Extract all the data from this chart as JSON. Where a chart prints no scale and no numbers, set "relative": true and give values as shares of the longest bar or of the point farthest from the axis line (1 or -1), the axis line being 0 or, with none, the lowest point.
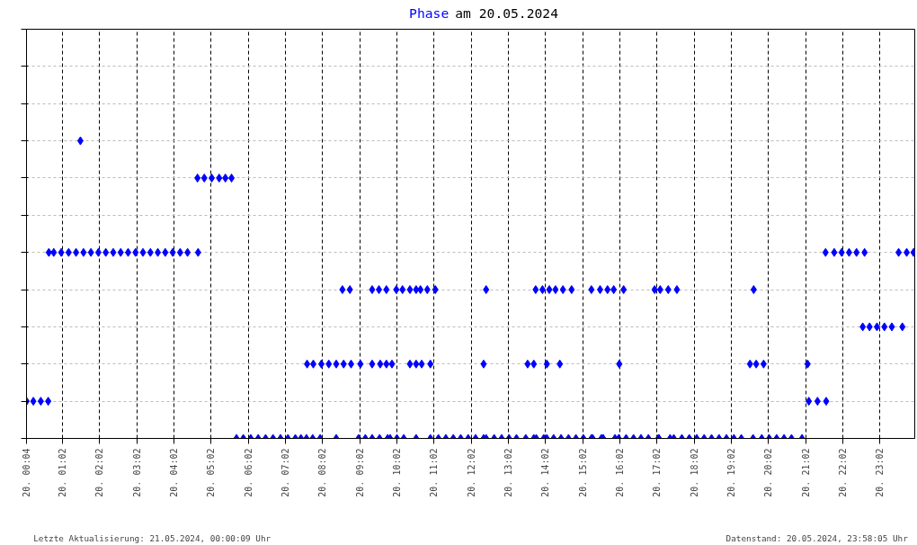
{
  "chart_data": {
    "type": "scatter",
    "title": "Phase am 20.05.2024",
    "relative": true,
    "marker": "diamond",
    "grid": true,
    "tick_labels": "x",
    "annotations": [
      "Letzte Aktualisierung: 21.05.2024, 00:00:09 Uhr",
      "Datenstand: 20.05.2024, 23:58:05 Uhr"
    ],
    "xlim": [
      "2024-05-20T00:04",
      "2024-05-20T23:58"
    ],
    "xticks": [
      {
        "value": "2024-05-20T00:04",
        "label": "20. 00:04"
      },
      {
        "value": "2024-05-20T01:02",
        "label": "20. 01:02"
      },
      {
        "value": "2024-05-20T02:02",
        "label": "20. 02:02"
      },
      {
        "value": "2024-05-20T03:02",
        "label": "20. 03:02"
      },
      {
        "value": "2024-05-20T04:02",
        "label": "20. 04:02"
      },
      {
        "value": "2024-05-20T05:02",
        "label": "20. 05:02"
      },
      {
        "value": "2024-05-20T06:02",
        "label": "20. 06:02"
      },
      {
        "value": "2024-05-20T07:02",
        "label": "20. 07:02"
      },
      {
        "value": "2024-05-20T08:02",
        "label": "20. 08:02"
      },
      {
        "value": "2024-05-20T09:02",
        "label": "20. 09:02"
      },
      {
        "value": "2024-05-20T10:02",
        "label": "20. 10:02"
      },
      {
        "value": "2024-05-20T11:02",
        "label": "20. 11:02"
      },
      {
        "value": "2024-05-20T12:02",
        "label": "20. 12:02"
      },
      {
        "value": "2024-05-20T13:02",
        "label": "20. 13:02"
      },
      {
        "value": "2024-05-20T14:02",
        "label": "20. 14:02"
      },
      {
        "value": "2024-05-20T15:02",
        "label": "20. 15:02"
      },
      {
        "value": "2024-05-20T16:02",
        "label": "20. 16:02"
      },
      {
        "value": "2024-05-20T17:02",
        "label": "20. 17:02"
      },
      {
        "value": "2024-05-20T18:02",
        "label": "20. 18:02"
      },
      {
        "value": "2024-05-20T19:02",
        "label": "20. 19:02"
      },
      {
        "value": "2024-05-20T20:02",
        "label": "20. 20:02"
      },
      {
        "value": "2024-05-20T21:02",
        "label": "20. 21:02"
      },
      {
        "value": "2024-05-20T22:02",
        "label": "20. 22:02"
      },
      {
        "value": "2024-05-20T23:02",
        "label": "20. 23:02"
      }
    ],
    "series": [
      {
        "color": "#0000ff",
        "x": [
          "2024-05-20T00:04",
          "2024-05-20T00:15",
          "2024-05-20T00:27",
          "2024-05-20T00:39",
          "2024-05-20T00:40",
          "2024-05-20T00:48",
          "2024-05-20T01:00",
          "2024-05-20T01:12",
          "2024-05-20T01:24",
          "2024-05-20T01:36",
          "2024-05-20T01:48",
          "2024-05-20T02:00",
          "2024-05-20T02:12",
          "2024-05-20T02:24",
          "2024-05-20T02:36",
          "2024-05-20T02:48",
          "2024-05-20T03:00",
          "2024-05-20T03:12",
          "2024-05-20T03:24",
          "2024-05-20T03:36",
          "2024-05-20T03:48",
          "2024-05-20T04:00",
          "2024-05-20T04:12",
          "2024-05-20T04:24",
          "2024-05-20T04:41",
          "2024-05-20T01:31",
          "2024-05-20T04:40",
          "2024-05-20T04:51",
          "2024-05-20T05:03",
          "2024-05-20T05:15",
          "2024-05-20T05:25",
          "2024-05-20T05:35",
          "2024-05-20T05:43",
          "2024-05-20T05:54",
          "2024-05-20T06:06",
          "2024-05-20T06:18",
          "2024-05-20T06:30",
          "2024-05-20T06:42",
          "2024-05-20T06:54",
          "2024-05-20T07:06",
          "2024-05-20T07:18",
          "2024-05-20T07:27",
          "2024-05-20T07:36",
          "2024-05-20T07:46",
          "2024-05-20T07:58",
          "2024-05-20T08:24",
          "2024-05-20T09:00",
          "2024-05-20T09:11",
          "2024-05-20T09:22",
          "2024-05-20T09:34",
          "2024-05-20T09:47",
          "2024-05-20T09:51",
          "2024-05-20T10:02",
          "2024-05-20T10:13",
          "2024-05-20T10:33",
          "2024-05-20T10:56",
          "2024-05-20T11:09",
          "2024-05-20T11:21",
          "2024-05-20T11:33",
          "2024-05-20T11:45",
          "2024-05-20T11:57",
          "2024-05-20T12:09",
          "2024-05-20T12:22",
          "2024-05-20T12:26",
          "2024-05-20T12:39",
          "2024-05-20T12:51",
          "2024-05-20T13:03",
          "2024-05-20T13:15",
          "2024-05-20T13:30",
          "2024-05-20T13:43",
          "2024-05-20T13:47",
          "2024-05-20T13:59",
          "2024-05-20T14:04",
          "2024-05-20T14:15",
          "2024-05-20T14:27",
          "2024-05-20T14:39",
          "2024-05-20T14:51",
          "2024-05-20T15:03",
          "2024-05-20T15:16",
          "2024-05-20T15:18",
          "2024-05-20T15:32",
          "2024-05-20T15:35",
          "2024-05-20T15:54",
          "2024-05-20T16:00",
          "2024-05-20T16:12",
          "2024-05-20T16:24",
          "2024-05-20T16:36",
          "2024-05-20T16:48",
          "2024-05-20T17:04",
          "2024-05-20T17:05",
          "2024-05-20T17:23",
          "2024-05-20T17:29",
          "2024-05-20T17:42",
          "2024-05-20T17:54",
          "2024-05-20T18:06",
          "2024-05-20T18:18",
          "2024-05-20T18:30",
          "2024-05-20T18:42",
          "2024-05-20T18:54",
          "2024-05-20T19:06",
          "2024-05-20T19:18",
          "2024-05-20T19:37",
          "2024-05-20T19:51",
          "2024-05-20T20:03",
          "2024-05-20T20:15",
          "2024-05-20T20:27",
          "2024-05-20T20:39",
          "2024-05-20T20:56",
          "2024-05-20T07:37",
          "2024-05-20T07:47",
          "2024-05-20T08:00",
          "2024-05-20T08:12",
          "2024-05-20T08:24",
          "2024-05-20T08:36",
          "2024-05-20T08:48",
          "2024-05-20T09:03",
          "2024-05-20T09:22",
          "2024-05-20T09:35",
          "2024-05-20T09:45",
          "2024-05-20T09:54",
          "2024-05-20T10:23",
          "2024-05-20T10:33",
          "2024-05-20T10:42",
          "2024-05-20T10:56",
          "2024-05-20T12:22",
          "2024-05-20T13:33",
          "2024-05-20T13:43",
          "2024-05-20T14:04",
          "2024-05-20T14:25",
          "2024-05-20T16:01",
          "2024-05-20T19:32",
          "2024-05-20T19:42",
          "2024-05-20T19:54",
          "2024-05-20T21:05",
          "2024-05-20T08:34",
          "2024-05-20T08:46",
          "2024-05-20T09:22",
          "2024-05-20T09:33",
          "2024-05-20T09:45",
          "2024-05-20T10:01",
          "2024-05-20T10:11",
          "2024-05-20T10:23",
          "2024-05-20T10:33",
          "2024-05-20T10:40",
          "2024-05-20T10:51",
          "2024-05-20T11:04",
          "2024-05-20T12:26",
          "2024-05-20T13:46",
          "2024-05-20T13:57",
          "2024-05-20T14:08",
          "2024-05-20T14:18",
          "2024-05-20T14:30",
          "2024-05-20T14:44",
          "2024-05-20T15:16",
          "2024-05-20T15:30",
          "2024-05-20T15:42",
          "2024-05-20T15:52",
          "2024-05-20T16:08",
          "2024-05-20T16:58",
          "2024-05-20T17:07",
          "2024-05-20T17:20",
          "2024-05-20T17:34",
          "2024-05-20T19:38",
          "2024-05-20T21:07",
          "2024-05-20T21:21",
          "2024-05-20T21:35",
          "2024-05-20T21:34",
          "2024-05-20T21:48",
          "2024-05-20T22:00",
          "2024-05-20T22:12",
          "2024-05-20T22:24",
          "2024-05-20T22:37",
          "2024-05-20T23:32",
          "2024-05-20T23:45",
          "2024-05-20T23:56",
          "2024-05-20T22:34",
          "2024-05-20T22:45",
          "2024-05-20T22:57",
          "2024-05-20T23:09",
          "2024-05-20T23:21",
          "2024-05-20T23:38"
        ],
        "values": [
          0.125,
          0.125,
          0.125,
          0.125,
          0.625,
          0.625,
          0.625,
          0.625,
          0.625,
          0.625,
          0.625,
          0.625,
          0.625,
          0.625,
          0.625,
          0.625,
          0.625,
          0.625,
          0.625,
          0.625,
          0.625,
          0.625,
          0.625,
          0.625,
          0.625,
          1,
          0.875,
          0.875,
          0.875,
          0.875,
          0.875,
          0.875,
          0,
          0,
          0,
          0,
          0,
          0,
          0,
          0,
          0,
          0,
          0,
          0,
          0,
          0,
          0,
          0,
          0,
          0,
          0,
          0,
          0,
          0,
          0,
          0,
          0,
          0,
          0,
          0,
          0,
          0,
          0,
          0,
          0,
          0,
          0,
          0,
          0,
          0,
          0,
          0,
          0,
          0,
          0,
          0,
          0,
          0,
          0,
          0,
          0,
          0,
          0,
          0,
          0,
          0,
          0,
          0,
          0,
          0,
          0,
          0,
          0,
          0,
          0,
          0,
          0,
          0,
          0,
          0,
          0,
          0,
          0,
          0,
          0,
          0,
          0,
          0,
          0.25,
          0.25,
          0.25,
          0.25,
          0.25,
          0.25,
          0.25,
          0.25,
          0.25,
          0.25,
          0.25,
          0.25,
          0.25,
          0.25,
          0.25,
          0.25,
          0.25,
          0.25,
          0.25,
          0.25,
          0.25,
          0.25,
          0.25,
          0.25,
          0.25,
          0.25,
          0.5,
          0.5,
          0.5,
          0.5,
          0.5,
          0.5,
          0.5,
          0.5,
          0.5,
          0.5,
          0.5,
          0.5,
          0.5,
          0.5,
          0.5,
          0.5,
          0.5,
          0.5,
          0.5,
          0.5,
          0.5,
          0.5,
          0.5,
          0.5,
          0.5,
          0.5,
          0.5,
          0.5,
          0.5,
          0.125,
          0.125,
          0.125,
          0.625,
          0.625,
          0.625,
          0.625,
          0.625,
          0.625,
          0.625,
          0.625,
          0.625,
          0.375,
          0.375,
          0.375,
          0.375,
          0.375,
          0.375
        ]
      }
    ]
  }
}
